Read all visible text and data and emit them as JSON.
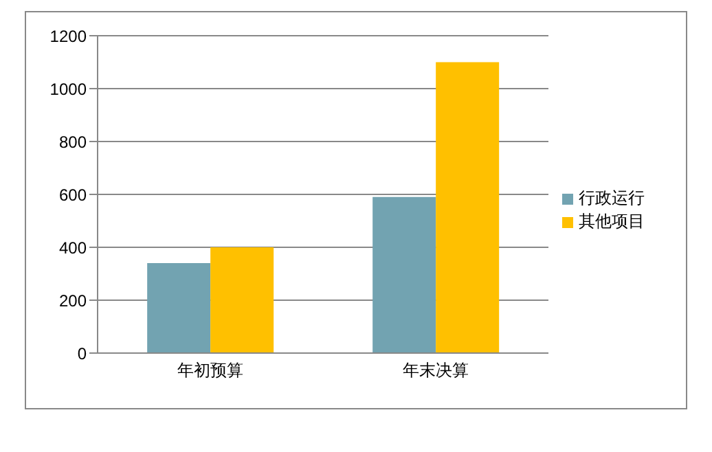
{
  "chart_data": {
    "type": "bar",
    "categories": [
      "年初预算",
      "年末决算"
    ],
    "series": [
      {
        "name": "行政运行",
        "color": "#72a3b1",
        "values": [
          340,
          590
        ]
      },
      {
        "name": "其他项目",
        "color": "#ffc000",
        "values": [
          400,
          1100
        ]
      }
    ],
    "ylim": [
      0,
      1200
    ],
    "yticks": [
      0,
      200,
      400,
      600,
      800,
      1000,
      1200
    ],
    "grid": "y",
    "legend": "right"
  }
}
